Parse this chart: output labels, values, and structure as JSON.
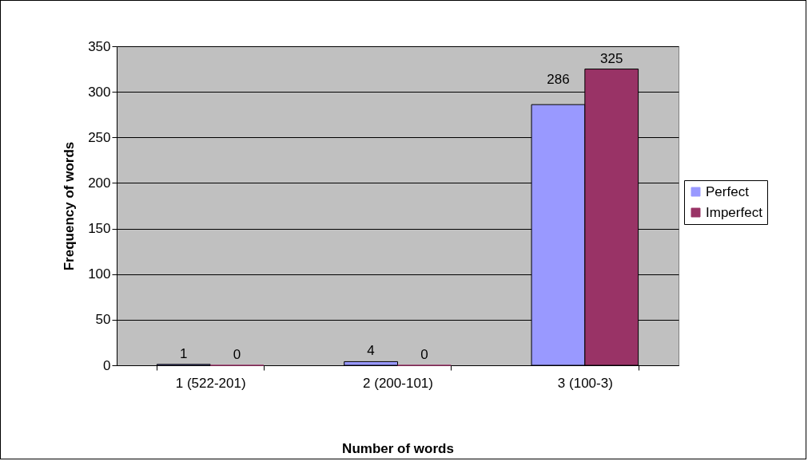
{
  "chart_data": {
    "type": "bar",
    "xlabel": "Number of words",
    "ylabel": "Frequency of words",
    "categories": [
      "1 (522-201)",
      "2 (200-101)",
      "3 (100-3)"
    ],
    "series": [
      {
        "name": "Perfect",
        "color": "#9999ff",
        "values": [
          1,
          4,
          286
        ]
      },
      {
        "name": "Imperfect",
        "color": "#993366",
        "values": [
          0,
          0,
          325
        ]
      }
    ],
    "ylim": [
      0,
      350
    ],
    "yticks": [
      0,
      50,
      100,
      150,
      200,
      250,
      300,
      350
    ],
    "grid": "y",
    "legend": "right",
    "data_labels": true
  }
}
